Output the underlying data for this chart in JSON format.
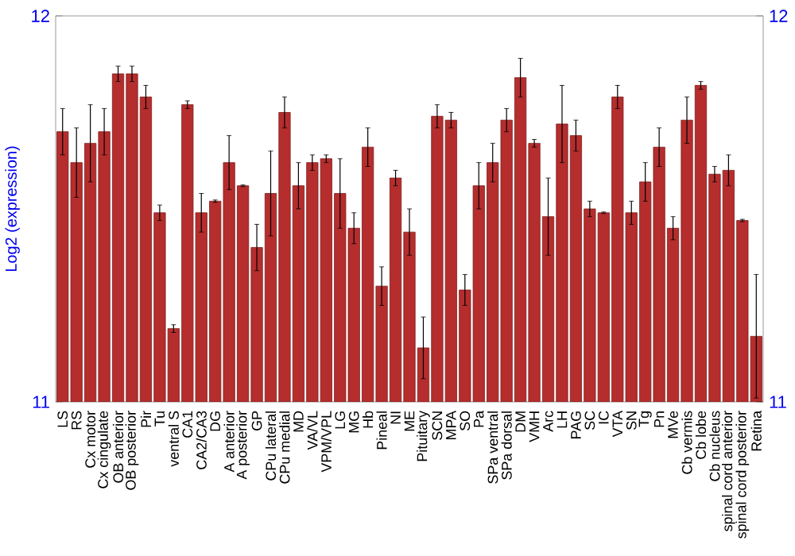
{
  "chart_data": {
    "type": "bar",
    "ylabel": "Log2 (expression)",
    "categories": [
      "LS",
      "RS",
      "Cx motor",
      "Cx cingulate",
      "OB anterior",
      "OB posterior",
      "Pir",
      "Tu",
      "ventral S",
      "CA1",
      "CA2/CA3",
      "DG",
      "A anterior",
      "A posterior",
      "GP",
      "CPu lateral",
      "CPu medial",
      "MD",
      "VA/VL",
      "VPM/VPL",
      "LG",
      "MG",
      "Hb",
      "Pineal",
      "NI",
      "ME",
      "Pituitary",
      "SCN",
      "MPA",
      "SO",
      "Pa",
      "SPa ventral",
      "SPa dorsal",
      "DM",
      "VMH",
      "Arc",
      "LH",
      "PAG",
      "SC",
      "IC",
      "VTA",
      "SN",
      "Tg",
      "Pn",
      "MVe",
      "Cb vermis",
      "Cb lobe",
      "Cb nucleus",
      "spinal cord anterior",
      "spinal cord posterior",
      "Retina"
    ],
    "values": [
      11.7,
      11.62,
      11.67,
      11.7,
      11.85,
      11.85,
      11.79,
      11.49,
      11.19,
      11.77,
      11.49,
      11.52,
      11.62,
      11.56,
      11.4,
      11.54,
      11.75,
      11.56,
      11.62,
      11.63,
      11.54,
      11.45,
      11.66,
      11.3,
      11.58,
      11.44,
      11.14,
      11.74,
      11.73,
      11.29,
      11.56,
      11.62,
      11.73,
      11.84,
      11.67,
      11.48,
      11.72,
      11.69,
      11.5,
      11.49,
      11.79,
      11.49,
      11.57,
      11.66,
      11.45,
      11.73,
      11.82,
      11.59,
      11.6,
      11.47,
      11.17
    ],
    "errors": [
      0.06,
      0.09,
      0.1,
      0.06,
      0.02,
      0.02,
      0.03,
      0.02,
      0.01,
      0.01,
      0.05,
      0.003,
      0.07,
      0.002,
      0.06,
      0.11,
      0.04,
      0.06,
      0.02,
      0.01,
      0.09,
      0.04,
      0.05,
      0.05,
      0.02,
      0.06,
      0.08,
      0.03,
      0.02,
      0.04,
      0.06,
      0.05,
      0.03,
      0.05,
      0.01,
      0.1,
      0.1,
      0.04,
      0.02,
      0.002,
      0.03,
      0.03,
      0.05,
      0.05,
      0.03,
      0.06,
      0.01,
      0.02,
      0.04,
      0.003,
      0.16
    ],
    "color": "#b52d2d",
    "ylim": [
      11,
      12
    ],
    "yticks": [
      11,
      12
    ],
    "y2lim": [
      11,
      12
    ],
    "y2ticks": [
      11,
      12
    ]
  }
}
